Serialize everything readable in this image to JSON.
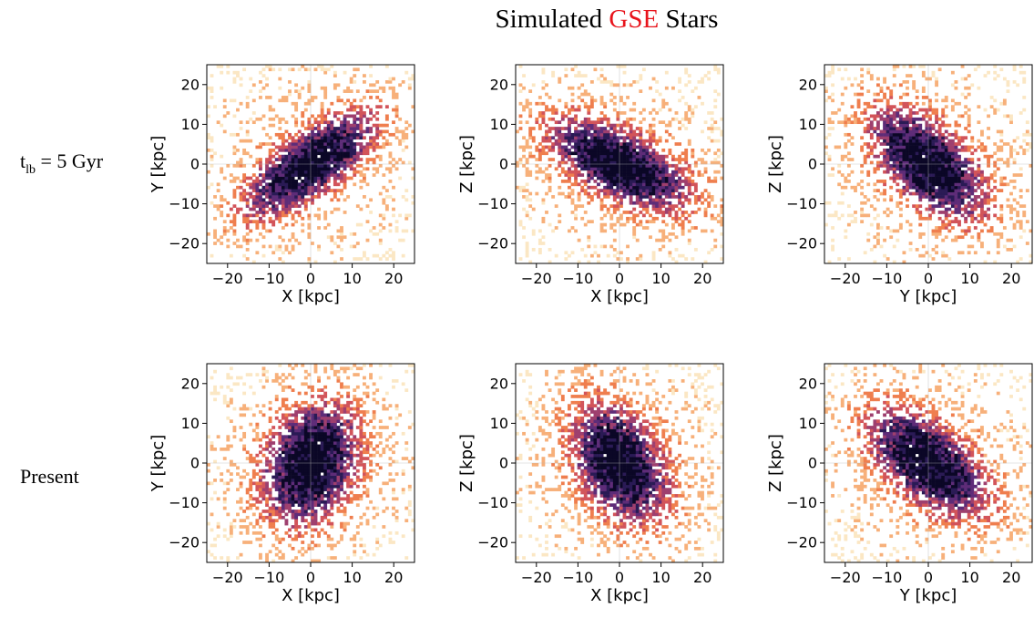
{
  "title": {
    "prefix": "Simulated ",
    "highlight": "GSE",
    "suffix": " Stars",
    "highlight_color": "#e8141c"
  },
  "rows": [
    {
      "label_main": "t",
      "label_sub": "lb",
      "label_rest": " = 5 Gyr"
    },
    {
      "label_main": "Present",
      "label_sub": "",
      "label_rest": ""
    }
  ],
  "colors": {
    "cmap": [
      "#fbe7c4",
      "#f7b07a",
      "#ef7e4e",
      "#d2545a",
      "#9e3f6e",
      "#5e2c78",
      "#2a1a55",
      "#0b0726"
    ],
    "axis": "#000000",
    "grid": "#b8b8b8"
  },
  "chart_data": [
    {
      "type": "heatmap",
      "panel": "row1-col1",
      "xlabel": "X [kpc]",
      "ylabel": "Y [kpc]",
      "xlim": [
        -25,
        25
      ],
      "ylim": [
        -25,
        25
      ],
      "xticks": [
        -20,
        -10,
        0,
        10,
        20
      ],
      "yticks": [
        -20,
        -10,
        0,
        10,
        20
      ],
      "tick_labels_x": [
        "−20",
        "−10",
        "0",
        "10",
        "20"
      ],
      "tick_labels_y": [
        "−20",
        "−10",
        "0",
        "10",
        "20"
      ],
      "density": {
        "center": [
          0,
          0
        ],
        "angle_deg": 38,
        "sigma_major": 12,
        "sigma_minor": 4.5
      }
    },
    {
      "type": "heatmap",
      "panel": "row1-col2",
      "xlabel": "X [kpc]",
      "ylabel": "Z [kpc]",
      "xlim": [
        -25,
        25
      ],
      "ylim": [
        -25,
        25
      ],
      "xticks": [
        -20,
        -10,
        0,
        10,
        20
      ],
      "yticks": [
        -20,
        -10,
        0,
        10,
        20
      ],
      "tick_labels_x": [
        "−20",
        "−10",
        "0",
        "10",
        "20"
      ],
      "tick_labels_y": [
        "−20",
        "−10",
        "0",
        "10",
        "20"
      ],
      "density": {
        "center": [
          0,
          0
        ],
        "angle_deg": -28,
        "sigma_major": 12,
        "sigma_minor": 5
      }
    },
    {
      "type": "heatmap",
      "panel": "row1-col3",
      "xlabel": "Y [kpc]",
      "ylabel": "Z [kpc]",
      "xlim": [
        -25,
        25
      ],
      "ylim": [
        -25,
        25
      ],
      "xticks": [
        -20,
        -10,
        0,
        10,
        20
      ],
      "yticks": [
        -20,
        -10,
        0,
        10,
        20
      ],
      "tick_labels_x": [
        "−20",
        "−10",
        "0",
        "10",
        "20"
      ],
      "tick_labels_y": [
        "−20",
        "−10",
        "0",
        "10",
        "20"
      ],
      "density": {
        "center": [
          0,
          0
        ],
        "angle_deg": -45,
        "sigma_major": 11,
        "sigma_minor": 5.5
      }
    },
    {
      "type": "heatmap",
      "panel": "row2-col1",
      "xlabel": "X [kpc]",
      "ylabel": "Y [kpc]",
      "xlim": [
        -25,
        25
      ],
      "ylim": [
        -25,
        25
      ],
      "xticks": [
        -20,
        -10,
        0,
        10,
        20
      ],
      "yticks": [
        -20,
        -10,
        0,
        10,
        20
      ],
      "tick_labels_x": [
        "−20",
        "−10",
        "0",
        "10",
        "20"
      ],
      "tick_labels_y": [
        "−20",
        "−10",
        "0",
        "10",
        "20"
      ],
      "density": {
        "center": [
          0,
          0
        ],
        "angle_deg": 70,
        "sigma_major": 10,
        "sigma_minor": 6.5
      }
    },
    {
      "type": "heatmap",
      "panel": "row2-col2",
      "xlabel": "X [kpc]",
      "ylabel": "Z [kpc]",
      "xlim": [
        -25,
        25
      ],
      "ylim": [
        -25,
        25
      ],
      "xticks": [
        -20,
        -10,
        0,
        10,
        20
      ],
      "yticks": [
        -20,
        -10,
        0,
        10,
        20
      ],
      "tick_labels_x": [
        "−20",
        "−10",
        "0",
        "10",
        "20"
      ],
      "tick_labels_y": [
        "−20",
        "−10",
        "0",
        "10",
        "20"
      ],
      "density": {
        "center": [
          0,
          0
        ],
        "angle_deg": -62,
        "sigma_major": 10,
        "sigma_minor": 6
      }
    },
    {
      "type": "heatmap",
      "panel": "row2-col3",
      "xlabel": "Y [kpc]",
      "ylabel": "Z [kpc]",
      "xlim": [
        -25,
        25
      ],
      "ylim": [
        -25,
        25
      ],
      "xticks": [
        -20,
        -10,
        0,
        10,
        20
      ],
      "yticks": [
        -20,
        -10,
        0,
        10,
        20
      ],
      "tick_labels_x": [
        "−20",
        "−10",
        "0",
        "10",
        "20"
      ],
      "tick_labels_y": [
        "−20",
        "−10",
        "0",
        "10",
        "20"
      ],
      "density": {
        "center": [
          0,
          0
        ],
        "angle_deg": -42,
        "sigma_major": 11,
        "sigma_minor": 5.5
      }
    }
  ]
}
